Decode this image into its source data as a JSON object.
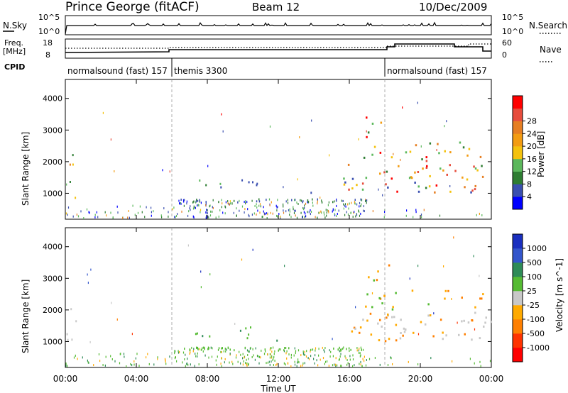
{
  "header": {
    "station": "Prince George (fitACF)",
    "beam": "Beam 12",
    "date": "10/Dec/2009"
  },
  "panel_labels": {
    "nsky": "N.Sky",
    "freq_line1": "Freq.",
    "freq_line2": "[MHz]",
    "cpid": "CPID",
    "nsearch": "N.Search",
    "nave": "Nave",
    "nsky_ticks": [
      "10^5",
      "10^0"
    ],
    "nsearch_ticks": [
      "10^5",
      "10^0"
    ],
    "freq_ticks": [
      "18",
      "8"
    ],
    "nave_ticks": [
      "60",
      "0"
    ]
  },
  "cpid_segments": [
    {
      "label": "normalsound (fast) 157",
      "start_hour": 0
    },
    {
      "label": "themis 3300",
      "start_hour": 6
    },
    {
      "label": "normalsound (fast) 157",
      "start_hour": 18
    }
  ],
  "colors": {
    "power_scale": [
      "#0000ff",
      "#3a4fb0",
      "#2e7d32",
      "#5cb85c",
      "#f4c20d",
      "#f39c12",
      "#e67e22",
      "#e74c3c",
      "#ff0000"
    ],
    "velocity_scale": [
      "#1a2fbf",
      "#3355cc",
      "#2e8b57",
      "#55bb33",
      "#c8c8c8",
      "#ffaa00",
      "#ff7f00",
      "#ff3300",
      "#ff0000"
    ]
  },
  "chart_data": [
    {
      "type": "heatmap",
      "name": "Power",
      "xlabel": "Time UT",
      "ylabel": "Slant Range [km]",
      "x_ticks": [
        "00:00",
        "04:00",
        "08:00",
        "12:00",
        "16:00",
        "20:00",
        "00:00"
      ],
      "y_ticks": [
        1000,
        2000,
        3000,
        4000
      ],
      "xlim": [
        0,
        24
      ],
      "ylim": [
        180,
        4600
      ],
      "colorbar": {
        "label": "Power [dB]",
        "ticks": [
          4,
          8,
          12,
          16,
          20,
          24,
          28
        ]
      },
      "cpid_change_hours": [
        6,
        18
      ]
    },
    {
      "type": "heatmap",
      "name": "Velocity",
      "xlabel": "Time UT",
      "ylabel": "Slant Range [km]",
      "x_ticks": [
        "00:00",
        "04:00",
        "08:00",
        "12:00",
        "16:00",
        "20:00",
        "00:00"
      ],
      "y_ticks": [
        1000,
        2000,
        3000,
        4000
      ],
      "xlim": [
        0,
        24
      ],
      "ylim": [
        180,
        4600
      ],
      "colorbar": {
        "label": "Velocity [m s^-1]",
        "ticks": [
          1000,
          500,
          100,
          25,
          -25,
          -100,
          -500,
          -1000
        ]
      },
      "cpid_change_hours": [
        6,
        18
      ]
    }
  ]
}
